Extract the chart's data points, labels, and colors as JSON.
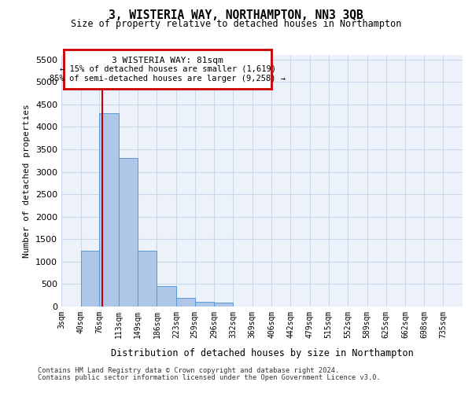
{
  "title_line1": "3, WISTERIA WAY, NORTHAMPTON, NN3 3QB",
  "title_line2": "Size of property relative to detached houses in Northampton",
  "xlabel": "Distribution of detached houses by size in Northampton",
  "ylabel": "Number of detached properties",
  "footnote1": "Contains HM Land Registry data © Crown copyright and database right 2024.",
  "footnote2": "Contains public sector information licensed under the Open Government Licence v3.0.",
  "annotation_title": "3 WISTERIA WAY: 81sqm",
  "annotation_line2": "← 15% of detached houses are smaller (1,619)",
  "annotation_line3": "85% of semi-detached houses are larger (9,258) →",
  "property_size": 81,
  "bar_color": "#aec6e8",
  "bar_edge_color": "#5a9ad5",
  "vline_color": "#cc0000",
  "annotation_box_color": "#cc0000",
  "background_color": "#edf2fa",
  "categories": [
    "3sqm",
    "40sqm",
    "76sqm",
    "113sqm",
    "149sqm",
    "186sqm",
    "223sqm",
    "259sqm",
    "296sqm",
    "332sqm",
    "369sqm",
    "406sqm",
    "442sqm",
    "479sqm",
    "515sqm",
    "552sqm",
    "589sqm",
    "625sqm",
    "662sqm",
    "698sqm",
    "735sqm"
  ],
  "bin_edges": [
    3,
    40,
    76,
    113,
    149,
    186,
    223,
    259,
    296,
    332,
    369,
    406,
    442,
    479,
    515,
    552,
    589,
    625,
    662,
    698,
    735
  ],
  "bar_heights": [
    0,
    1250,
    4300,
    3300,
    1250,
    450,
    200,
    100,
    80,
    0,
    0,
    0,
    0,
    0,
    0,
    0,
    0,
    0,
    0,
    0
  ],
  "ylim": [
    0,
    5600
  ],
  "yticks": [
    0,
    500,
    1000,
    1500,
    2000,
    2500,
    3000,
    3500,
    4000,
    4500,
    5000,
    5500
  ],
  "grid_color": "#c8d8ea",
  "fig_width": 6.0,
  "fig_height": 5.0,
  "dpi": 100
}
